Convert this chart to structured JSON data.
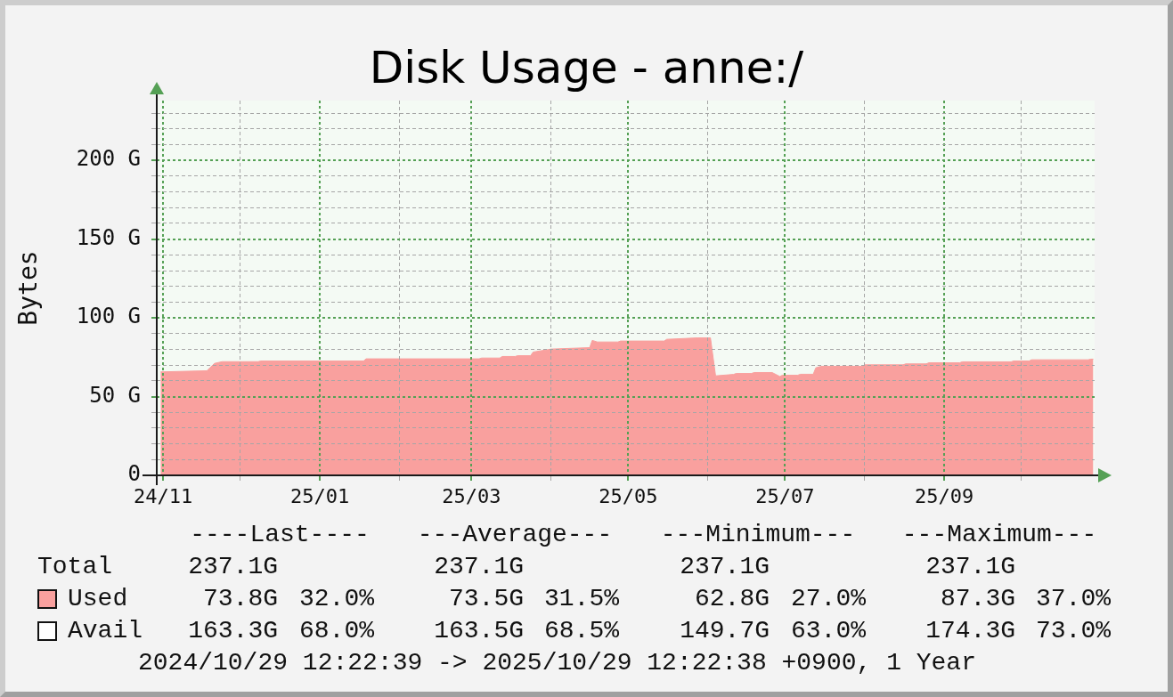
{
  "chart_data": {
    "type": "area",
    "title": "Disk Usage - anne:/",
    "ylabel": "Bytes",
    "x": [
      "2024-10-31",
      "2024-11-18",
      "2024-11-21",
      "2024-11-24",
      "2024-12-08",
      "2024-12-09",
      "2025-01-18",
      "2025-01-19",
      "2025-03-04",
      "2025-03-05",
      "2025-03-12",
      "2025-03-13",
      "2025-03-18",
      "2025-03-19",
      "2025-03-24",
      "2025-03-25",
      "2025-04-01",
      "2025-04-16",
      "2025-04-17",
      "2025-04-19",
      "2025-04-27",
      "2025-04-28",
      "2025-05-15",
      "2025-05-16",
      "2025-05-28",
      "2025-06-02",
      "2025-06-04",
      "2025-06-11",
      "2025-06-12",
      "2025-06-18",
      "2025-06-19",
      "2025-06-26",
      "2025-06-29",
      "2025-06-30",
      "2025-07-06",
      "2025-07-07",
      "2025-07-12",
      "2025-07-13",
      "2025-07-15",
      "2025-07-31",
      "2025-08-01",
      "2025-08-16",
      "2025-08-17",
      "2025-08-25",
      "2025-08-26",
      "2025-09-07",
      "2025-09-08",
      "2025-09-27",
      "2025-09-28",
      "2025-10-04",
      "2025-10-05",
      "2025-10-27",
      "2025-10-28",
      "2025-10-29"
    ],
    "series": [
      {
        "name": "Used",
        "color": "#f9a09e",
        "values": [
          65.7,
          66.4,
          71.1,
          72.2,
          72.2,
          72.6,
          72.6,
          74.0,
          74.0,
          74.5,
          74.5,
          75.5,
          75.5,
          76.0,
          76.0,
          78.3,
          80.2,
          81.1,
          85.7,
          84.7,
          84.7,
          85.3,
          85.3,
          86.4,
          87.3,
          87.3,
          63.2,
          64.1,
          64.7,
          64.7,
          65.3,
          65.3,
          62.8,
          63.6,
          63.6,
          64.2,
          64.2,
          68.3,
          69.2,
          69.2,
          70.2,
          70.2,
          70.8,
          70.8,
          71.5,
          71.5,
          72.1,
          72.1,
          72.6,
          72.6,
          73.4,
          73.4,
          73.8,
          73.8
        ]
      }
    ],
    "xlim": [
      "2024-10-29T12:22",
      "2025-10-29T12:22"
    ],
    "xticks": [
      {
        "value": "2024-11-01",
        "label": "24/11"
      },
      {
        "value": "2024-12-01",
        "label": null
      },
      {
        "value": "2025-01-01",
        "label": "25/01"
      },
      {
        "value": "2025-02-01",
        "label": null
      },
      {
        "value": "2025-03-01",
        "label": "25/03"
      },
      {
        "value": "2025-04-01",
        "label": null
      },
      {
        "value": "2025-05-01",
        "label": "25/05"
      },
      {
        "value": "2025-06-01",
        "label": null
      },
      {
        "value": "2025-07-01",
        "label": "25/07"
      },
      {
        "value": "2025-08-01",
        "label": null
      },
      {
        "value": "2025-09-01",
        "label": "25/09"
      },
      {
        "value": "2025-10-01",
        "label": null
      }
    ],
    "ylim": [
      0,
      238
    ],
    "yticks": [
      0,
      {
        "value": 10,
        "label": null
      },
      {
        "value": 20,
        "label": null
      },
      {
        "value": 30,
        "label": null
      },
      {
        "value": 40,
        "label": null
      },
      {
        "value": 50,
        "label": "50 G"
      },
      {
        "value": 60,
        "label": null
      },
      {
        "value": 70,
        "label": null
      },
      {
        "value": 80,
        "label": null
      },
      {
        "value": 90,
        "label": null
      },
      {
        "value": 100,
        "label": "100 G"
      },
      {
        "value": 110,
        "label": null
      },
      {
        "value": 120,
        "label": null
      },
      {
        "value": 130,
        "label": null
      },
      {
        "value": 140,
        "label": null
      },
      {
        "value": 150,
        "label": "150 G"
      },
      {
        "value": 160,
        "label": null
      },
      {
        "value": 170,
        "label": null
      },
      {
        "value": 180,
        "label": null
      },
      {
        "value": 190,
        "label": null
      },
      {
        "value": 200,
        "label": "200 G"
      },
      {
        "value": 210,
        "label": null
      },
      {
        "value": 220,
        "label": null
      },
      {
        "value": 230,
        "label": null
      }
    ],
    "grid": true,
    "legend": "bottom",
    "annotations": [
      "----Last----",
      "---Average---",
      "---Minimum---",
      "---Maximum---",
      "Total",
      "237.1G",
      "237.1G",
      "237.1G",
      "237.1G",
      "73.8G",
      "32.0%",
      "73.5G",
      "31.5%",
      "62.8G",
      "27.0%",
      "87.3G",
      "37.0%",
      "Avail",
      "163.3G",
      "68.0%",
      "163.5G",
      "68.5%",
      "149.7G",
      "63.0%",
      "174.3G",
      "73.0%",
      "2024/10/29 12:22:39 -> 2025/10/29 12:22:38 +0900, 1 Year"
    ]
  }
}
